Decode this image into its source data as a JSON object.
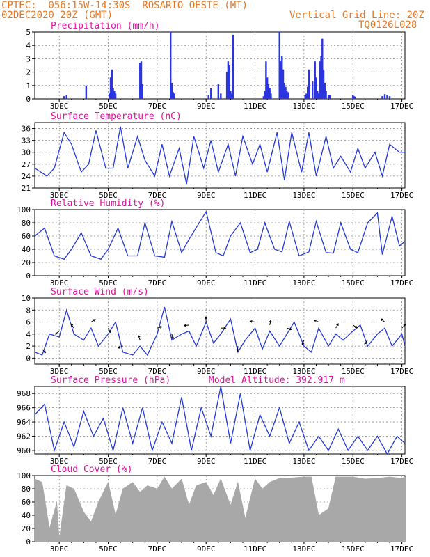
{
  "header": {
    "line1": "CPTEC:  056:15W-14:30S  ROSARIO OESTE (MT)",
    "line2": "02DEC2020 20Z (GMT)",
    "grid_note": "Vertical Grid Line: 20Z",
    "code": "TQ0126L028",
    "color": "#e87722"
  },
  "colors": {
    "title": "#e0119d",
    "line": "#2338d4",
    "bar": "#2a35e0",
    "cloud": "#a8a8a8",
    "arrow": "#000000"
  },
  "x_axis": {
    "start_label": "02DEC2020 20Z",
    "tick_labels": [
      "3DEC",
      "5DEC",
      "7DEC",
      "9DEC",
      "11DEC",
      "13DEC",
      "15DEC",
      "17DEC"
    ],
    "tick_days": [
      1,
      3,
      5,
      7,
      9,
      11,
      13,
      15
    ],
    "xlim_days": [
      0,
      15.125
    ]
  },
  "chart_data": [
    {
      "type": "bar",
      "title": "Precipitation (mm/h)",
      "ylim": [
        0,
        5
      ],
      "yticks": [
        "0",
        "1",
        "2",
        "3",
        "4",
        "5"
      ],
      "grid": true,
      "x_days": [
        1.2,
        1.3,
        2.1,
        3.05,
        3.1,
        3.15,
        3.2,
        3.25,
        3.3,
        4.3,
        4.35,
        4.4,
        5.55,
        5.6,
        5.65,
        5.7,
        7.1,
        7.2,
        7.5,
        7.6,
        7.85,
        7.9,
        7.95,
        8.0,
        8.05,
        8.1,
        9.35,
        9.4,
        9.45,
        9.5,
        9.55,
        9.6,
        9.65,
        10.0,
        10.05,
        10.1,
        10.15,
        10.2,
        10.25,
        10.3,
        10.35,
        11.05,
        11.1,
        11.15,
        11.2,
        11.35,
        11.45,
        11.5,
        11.55,
        11.6,
        11.65,
        11.7,
        11.75,
        11.8,
        11.85,
        11.9,
        12.0,
        12.05,
        13.0,
        13.05,
        13.1,
        14.2,
        14.3,
        14.4,
        14.5
      ],
      "values": [
        0.2,
        0.3,
        1.0,
        0.4,
        1.6,
        2.2,
        0.8,
        0.6,
        0.4,
        2.7,
        2.8,
        1.1,
        5.0,
        1.2,
        0.5,
        0.4,
        0.3,
        0.8,
        1.1,
        0.4,
        2.0,
        2.8,
        2.5,
        0.6,
        0.4,
        4.8,
        0.2,
        0.6,
        2.8,
        1.6,
        1.1,
        0.8,
        0.4,
        5.0,
        2.8,
        3.2,
        2.2,
        1.2,
        0.9,
        0.6,
        0.5,
        0.3,
        0.4,
        0.9,
        2.2,
        1.3,
        2.8,
        1.6,
        0.6,
        0.4,
        2.8,
        3.2,
        4.5,
        2.2,
        1.2,
        0.6,
        0.3,
        0.3,
        0.3,
        0.2,
        0.15,
        0.2,
        0.35,
        0.3,
        0.2
      ]
    },
    {
      "type": "line",
      "title": "Surface Temperature (nC)",
      "ylim": [
        21,
        37.5
      ],
      "yticks": [
        "21",
        "24",
        "27",
        "30",
        "33",
        "36"
      ],
      "grid": true,
      "series": [
        {
          "x_days": [
            0,
            0.5,
            0.8,
            1.2,
            1.5,
            1.9,
            2.2,
            2.5,
            2.9,
            3.2,
            3.5,
            3.8,
            4.2,
            4.5,
            4.9,
            5.2,
            5.5,
            5.9,
            6.2,
            6.5,
            6.9,
            7.2,
            7.5,
            7.9,
            8.2,
            8.5,
            8.9,
            9.2,
            9.5,
            9.9,
            10.2,
            10.5,
            10.9,
            11.2,
            11.5,
            11.9,
            12.2,
            12.5,
            12.9,
            13.2,
            13.5,
            13.9,
            14.2,
            14.5,
            14.9,
            15.125
          ],
          "values": [
            26,
            24,
            26,
            35,
            32,
            25,
            27,
            35.5,
            26,
            26,
            36.5,
            26,
            34,
            28,
            24,
            32,
            24,
            31,
            22,
            34,
            26,
            33,
            25,
            32,
            24,
            34,
            27,
            32,
            25,
            35,
            23,
            35,
            25,
            35,
            24,
            34,
            26,
            29,
            25,
            31,
            26,
            30,
            24,
            32,
            30,
            30
          ]
        }
      ]
    },
    {
      "type": "line",
      "title": "Relative Humidity (%)",
      "ylim": [
        0,
        100
      ],
      "yticks": [
        "0",
        "20",
        "40",
        "60",
        "80",
        "100"
      ],
      "grid": true,
      "series": [
        {
          "x_days": [
            0,
            0.4,
            0.8,
            1.2,
            1.5,
            1.9,
            2.3,
            2.7,
            3.0,
            3.4,
            3.8,
            4.2,
            4.5,
            4.9,
            5.3,
            5.6,
            6.0,
            6.3,
            6.8,
            7.0,
            7.4,
            7.7,
            8.0,
            8.4,
            8.8,
            9.1,
            9.4,
            9.8,
            10.1,
            10.4,
            10.8,
            11.2,
            11.5,
            11.9,
            12.2,
            12.5,
            12.9,
            13.2,
            13.6,
            14.0,
            14.2,
            14.6,
            14.9,
            15.125
          ],
          "values": [
            60,
            72,
            30,
            25,
            40,
            65,
            30,
            25,
            40,
            72,
            30,
            30,
            80,
            30,
            28,
            82,
            35,
            55,
            85,
            97,
            35,
            30,
            60,
            80,
            35,
            40,
            80,
            40,
            36,
            82,
            30,
            36,
            82,
            35,
            34,
            80,
            40,
            35,
            80,
            95,
            32,
            90,
            45,
            52
          ]
        }
      ]
    },
    {
      "type": "line",
      "title": "Surface Wind (m/s)",
      "ylim": [
        -1,
        10
      ],
      "yticks": [
        "0",
        "2",
        "4",
        "6",
        "8",
        "10"
      ],
      "grid": true,
      "series": [
        {
          "x_days": [
            0,
            0.3,
            0.6,
            1.0,
            1.3,
            1.6,
            2.0,
            2.3,
            2.6,
            3.0,
            3.3,
            3.6,
            4.0,
            4.3,
            4.6,
            5.0,
            5.3,
            5.6,
            6.0,
            6.3,
            6.6,
            7.0,
            7.3,
            7.6,
            8.0,
            8.3,
            8.6,
            9.0,
            9.3,
            9.6,
            10.0,
            10.3,
            10.6,
            11.0,
            11.3,
            11.6,
            12.0,
            12.3,
            12.6,
            13.0,
            13.3,
            13.6,
            14.0,
            14.3,
            14.6,
            15.0,
            15.125
          ],
          "values": [
            1,
            0.5,
            4,
            3.5,
            8,
            4,
            3,
            5,
            2,
            4,
            6,
            1,
            0.5,
            2,
            0.5,
            4,
            8.5,
            3,
            4,
            4.5,
            2,
            6,
            2.5,
            4,
            6.5,
            1,
            3,
            5,
            1.5,
            4.5,
            2,
            4,
            6,
            2,
            1,
            5,
            2,
            4,
            3,
            4.5,
            5.5,
            2,
            4,
            5,
            2,
            4,
            2
          ]
        }
      ],
      "arrows_note": "wind direction vectors"
    },
    {
      "type": "line",
      "title": "Surface Pressure (hPa)",
      "annotation": "Model Altitude: 392.917 m",
      "ylim": [
        959.5,
        969
      ],
      "yticks": [
        "960",
        "962",
        "964",
        "966",
        "968"
      ],
      "grid": true,
      "series": [
        {
          "x_days": [
            0,
            0.4,
            0.8,
            1.2,
            1.6,
            2.0,
            2.4,
            2.8,
            3.2,
            3.6,
            4.0,
            4.4,
            4.8,
            5.2,
            5.6,
            6.0,
            6.4,
            6.8,
            7.2,
            7.6,
            8.0,
            8.4,
            8.8,
            9.2,
            9.6,
            10.0,
            10.4,
            10.8,
            11.2,
            11.6,
            12.0,
            12.4,
            12.8,
            13.2,
            13.6,
            14.0,
            14.4,
            14.8,
            15.125
          ],
          "values": [
            965,
            966.5,
            960,
            964,
            960.5,
            965.5,
            962,
            964.5,
            960,
            966,
            961,
            966,
            960,
            964,
            961,
            967.5,
            960,
            966,
            962,
            969,
            961,
            968,
            960,
            965,
            962,
            966,
            961,
            964,
            960,
            962,
            960,
            963,
            960,
            962,
            960,
            962,
            959.5,
            962,
            961
          ]
        }
      ]
    },
    {
      "type": "area",
      "title": "Cloud Cover (%)",
      "ylim": [
        0,
        100
      ],
      "yticks": [
        "0",
        "20",
        "40",
        "60",
        "80",
        "100"
      ],
      "grid": true,
      "series": [
        {
          "x_days": [
            0,
            0.3,
            0.6,
            0.9,
            1.0,
            1.3,
            1.6,
            2.0,
            2.3,
            2.6,
            3.0,
            3.3,
            3.6,
            4.0,
            4.3,
            4.6,
            5.0,
            5.3,
            5.6,
            6.0,
            6.3,
            6.6,
            7.0,
            7.3,
            7.6,
            8.0,
            8.3,
            8.6,
            9.0,
            9.3,
            9.6,
            10.0,
            10.3,
            10.6,
            11.0,
            11.3,
            11.6,
            12.0,
            12.3,
            12.6,
            13.0,
            13.5,
            14.0,
            14.5,
            15.0,
            15.125
          ],
          "values": [
            95,
            90,
            20,
            60,
            5,
            85,
            80,
            45,
            30,
            60,
            90,
            40,
            80,
            90,
            75,
            85,
            80,
            98,
            80,
            95,
            55,
            85,
            90,
            70,
            95,
            55,
            90,
            35,
            95,
            80,
            90,
            96,
            96,
            97,
            98,
            98,
            40,
            50,
            98,
            98,
            98,
            95,
            96,
            98,
            96,
            98
          ]
        }
      ]
    }
  ]
}
